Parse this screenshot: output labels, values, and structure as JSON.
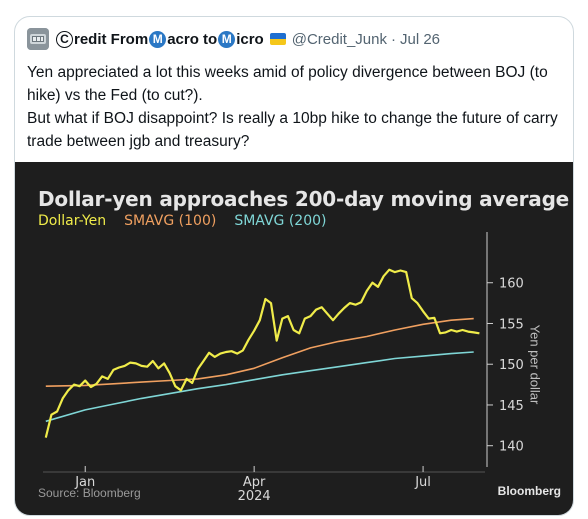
{
  "tweet": {
    "display_name": {
      "c1": "C",
      "part1": "redit From ",
      "c2": "M",
      "part2": "acro to ",
      "c3": "M",
      "part3": "icro"
    },
    "handle": "@Credit_Junk",
    "separator": "·",
    "date": "Jul 26",
    "text_lines": [
      "Yen appreciated a lot this weeks amid of policy divergence between BOJ (to hike) vs the Fed (to cut?).",
      "But what if BOJ disappoint? Is really a 10bp hike to change the future of carry trade between jgb and treasury?"
    ]
  },
  "colors": {
    "chart_bg": "#1e1e1e",
    "dollar_yen": "#f0ec4a",
    "smavg_100": "#f0a060",
    "smavg_200": "#7fd6d6",
    "flag_blue": "#1f6fd1",
    "flag_yellow": "#f5c71a"
  },
  "chart_data": {
    "type": "line",
    "title": "Dollar-yen approaches 200-day moving average",
    "ylabel": "Yen per dollar",
    "ylim": [
      138,
      165
    ],
    "yticks": [
      140,
      145,
      150,
      155,
      160
    ],
    "x_tick_labels": [
      "Jan",
      "Apr",
      "2024",
      "Jul"
    ],
    "xlim_months": [
      -0.75,
      7.1
    ],
    "x_months": [
      -0.7,
      -0.6,
      -0.5,
      -0.4,
      -0.3,
      -0.2,
      -0.1,
      0.0,
      0.1,
      0.2,
      0.3,
      0.4,
      0.5,
      0.6,
      0.7,
      0.8,
      0.9,
      1.0,
      1.1,
      1.2,
      1.3,
      1.4,
      1.5,
      1.6,
      1.7,
      1.8,
      1.9,
      2.0,
      2.1,
      2.2,
      2.3,
      2.4,
      2.5,
      2.6,
      2.7,
      2.8,
      2.9,
      3.0,
      3.1,
      3.2,
      3.3,
      3.4,
      3.5,
      3.6,
      3.7,
      3.8,
      3.9,
      4.0,
      4.1,
      4.2,
      4.3,
      4.4,
      4.5,
      4.6,
      4.7,
      4.8,
      4.9,
      5.0,
      5.1,
      5.2,
      5.3,
      5.4,
      5.5,
      5.6,
      5.7,
      5.8,
      5.9,
      6.0,
      6.1,
      6.2,
      6.3,
      6.4,
      6.5,
      6.6,
      6.7,
      6.8,
      6.9,
      7.0
    ],
    "series": [
      {
        "name": "Dollar-Yen",
        "values": [
          141.0,
          143.8,
          144.2,
          145.8,
          146.8,
          147.5,
          147.3,
          148.0,
          147.2,
          147.6,
          148.5,
          148.2,
          149.3,
          149.6,
          149.8,
          150.2,
          150.1,
          149.8,
          149.7,
          150.4,
          149.5,
          150.1,
          148.9,
          147.3,
          146.8,
          148.2,
          147.7,
          149.4,
          150.4,
          151.4,
          150.9,
          151.3,
          151.5,
          151.6,
          151.3,
          151.7,
          153.0,
          154.1,
          155.4,
          158.0,
          157.5,
          152.9,
          155.6,
          155.9,
          154.2,
          153.8,
          155.6,
          155.9,
          156.7,
          157.0,
          156.2,
          155.4,
          156.2,
          156.9,
          157.5,
          157.3,
          157.6,
          159.0,
          160.0,
          159.5,
          160.8,
          161.6,
          161.3,
          161.5,
          161.3,
          158.1,
          157.5,
          156.5,
          155.6,
          155.7,
          153.8,
          153.9,
          154.2,
          154.0,
          154.2,
          154.0,
          153.9,
          153.8
        ],
        "values_note_x_start": -0.7
      },
      {
        "name": "SMAVG (100)",
        "x": [
          -0.7,
          0.0,
          0.5,
          1.0,
          1.5,
          2.0,
          2.5,
          3.0,
          3.5,
          4.0,
          4.5,
          5.0,
          5.5,
          6.0,
          6.5,
          6.9
        ],
        "values": [
          147.3,
          147.4,
          147.6,
          147.8,
          148.0,
          148.2,
          148.7,
          149.5,
          150.8,
          152.0,
          152.8,
          153.4,
          154.2,
          154.9,
          155.4,
          155.6
        ]
      },
      {
        "name": "SMAVG (200)",
        "x": [
          -0.7,
          0.0,
          0.5,
          1.0,
          1.5,
          2.0,
          2.5,
          3.0,
          3.5,
          4.0,
          4.5,
          5.0,
          5.5,
          6.0,
          6.5,
          6.9
        ],
        "values": [
          143.0,
          144.4,
          145.1,
          145.8,
          146.4,
          147.0,
          147.5,
          148.1,
          148.7,
          149.2,
          149.7,
          150.2,
          150.7,
          151.0,
          151.3,
          151.5
        ]
      }
    ],
    "legend_placement": "top-left",
    "grid": false,
    "source": "Source: Bloomberg",
    "brand": "Bloomberg"
  }
}
